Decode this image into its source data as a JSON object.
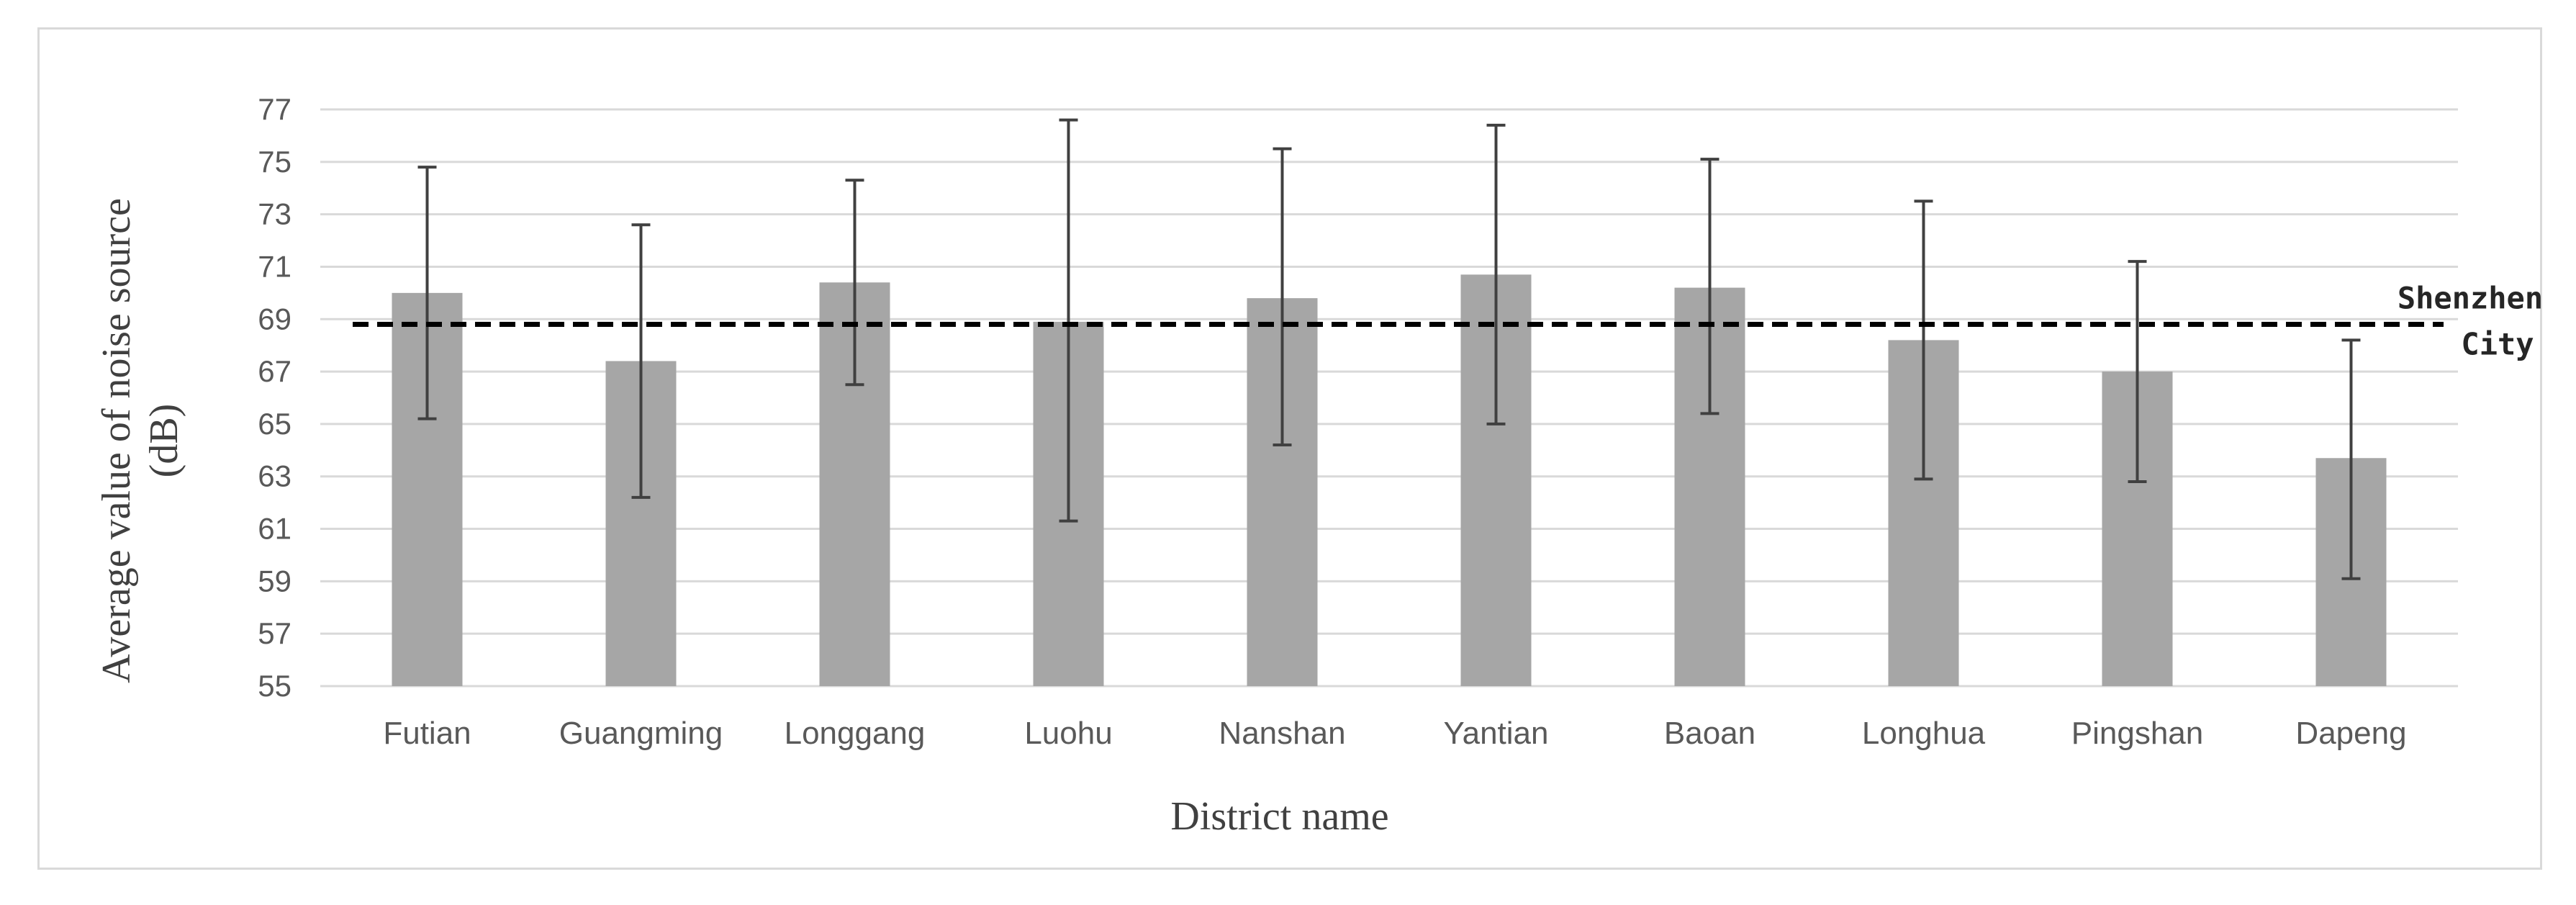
{
  "chart_data": {
    "type": "bar",
    "title": "",
    "xlabel": "District name",
    "ylabel_line1": "Average value of noise source",
    "ylabel_line2": "(dB)",
    "ylim": [
      55,
      77
    ],
    "yticks": [
      55,
      57,
      59,
      61,
      63,
      65,
      67,
      69,
      71,
      73,
      75,
      77
    ],
    "grid": true,
    "categories": [
      "Futian",
      "Guangming",
      "Longgang",
      "Luohu",
      "Nanshan",
      "Yantian",
      "Baoan",
      "Longhua",
      "Pingshan",
      "Dapeng"
    ],
    "values": [
      70.0,
      67.4,
      70.4,
      68.9,
      69.8,
      70.7,
      70.2,
      68.2,
      67.0,
      63.7
    ],
    "error_low": [
      65.2,
      62.2,
      66.5,
      61.3,
      64.2,
      65.0,
      65.4,
      62.9,
      62.8,
      59.1
    ],
    "error_high": [
      74.8,
      72.6,
      74.3,
      76.6,
      75.5,
      76.4,
      75.1,
      73.5,
      71.2,
      68.2
    ],
    "bar_color": "#a6a6a6",
    "error_color": "#404040",
    "reference_line": {
      "value": 68.8,
      "label_line1": "Shenzhen",
      "label_line2": "City",
      "style": "dashed",
      "color": "#000000"
    }
  }
}
